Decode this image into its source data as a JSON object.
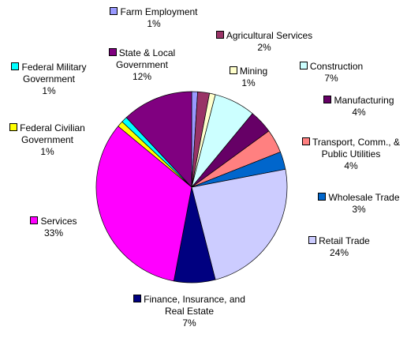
{
  "chart_data": {
    "type": "pie",
    "categories": [
      "Farm Employment",
      "Agricultural Services",
      "Mining",
      "Construction",
      "Manufacturing",
      "Transport, Comm., & Public Utilities",
      "Wholesale Trade",
      "Retail Trade",
      "Finance, Insurance, and Real Estate",
      "Services",
      "Federal Civilian Government",
      "Federal Military Government",
      "State & Local Government"
    ],
    "values": [
      1,
      2,
      1,
      7,
      4,
      4,
      3,
      24,
      7,
      33,
      1,
      1,
      12
    ],
    "value_labels": [
      "1%",
      "2%",
      "1%",
      "7%",
      "4%",
      "4%",
      "3%",
      "24%",
      "7%",
      "33%",
      "1%",
      "1%",
      "12%"
    ],
    "colors": [
      "#9999FF",
      "#993366",
      "#FFFFCC",
      "#CCFFFF",
      "#660066",
      "#FF8080",
      "#0066CC",
      "#CCCCFF",
      "#000080",
      "#FF00FF",
      "#FFFF00",
      "#00FFFF",
      "#800080"
    ]
  }
}
